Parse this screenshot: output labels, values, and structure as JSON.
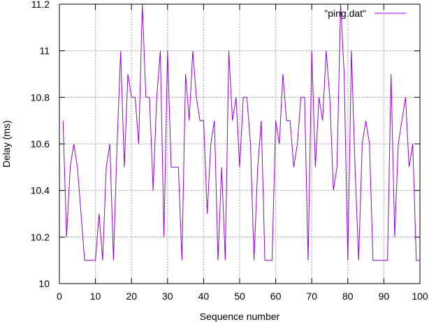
{
  "chart_data": {
    "type": "line",
    "xlabel": "Sequence number",
    "ylabel": "Delay (ms)",
    "xlim": [
      0,
      100
    ],
    "ylim": [
      10,
      11.2
    ],
    "xticks": [
      "0",
      "10",
      "20",
      "30",
      "40",
      "50",
      "60",
      "70",
      "80",
      "90",
      "100"
    ],
    "yticks": [
      "10",
      "10.2",
      "10.4",
      "10.6",
      "10.8",
      "11",
      "11.2"
    ],
    "grid": true,
    "legend_position": "top-right",
    "series": [
      {
        "name": "\"ping.dat\"",
        "color": "#9400d3",
        "x": [
          1,
          2,
          3,
          4,
          5,
          6,
          7,
          8,
          9,
          10,
          11,
          12,
          13,
          14,
          15,
          16,
          17,
          18,
          19,
          20,
          21,
          22,
          23,
          24,
          25,
          26,
          27,
          28,
          29,
          30,
          31,
          32,
          33,
          34,
          35,
          36,
          37,
          38,
          39,
          40,
          41,
          42,
          43,
          44,
          45,
          46,
          47,
          48,
          49,
          50,
          51,
          52,
          53,
          54,
          55,
          56,
          57,
          58,
          59,
          60,
          61,
          62,
          63,
          64,
          65,
          66,
          67,
          68,
          69,
          70,
          71,
          72,
          73,
          74,
          75,
          76,
          77,
          78,
          79,
          80,
          81,
          82,
          83,
          84,
          85,
          86,
          87,
          88,
          89,
          90,
          91,
          92,
          93,
          94,
          95,
          96,
          97,
          98,
          99,
          100
        ],
        "y": [
          10.7,
          10.2,
          10.5,
          10.6,
          10.5,
          10.3,
          10.1,
          10.1,
          10.1,
          10.1,
          10.3,
          10.1,
          10.5,
          10.6,
          10.1,
          10.6,
          11.0,
          10.5,
          10.9,
          10.8,
          10.8,
          10.6,
          11.2,
          10.8,
          10.8,
          10.4,
          10.8,
          11.0,
          10.2,
          11.0,
          10.5,
          10.5,
          10.5,
          10.1,
          10.9,
          10.7,
          11.0,
          10.8,
          10.7,
          10.7,
          10.3,
          10.6,
          10.7,
          10.1,
          10.5,
          10.1,
          11.0,
          10.7,
          10.8,
          10.5,
          10.8,
          10.8,
          10.6,
          10.1,
          10.5,
          10.7,
          10.1,
          10.1,
          10.1,
          10.7,
          10.6,
          10.9,
          10.7,
          10.7,
          10.5,
          10.6,
          10.8,
          10.8,
          10.1,
          11.0,
          10.5,
          10.8,
          10.7,
          11.0,
          10.8,
          10.4,
          10.5,
          11.2,
          10.9,
          10.1,
          11.0,
          10.5,
          10.1,
          10.6,
          10.7,
          10.6,
          10.1,
          10.1,
          10.1,
          10.1,
          10.1,
          10.9,
          10.2,
          10.6,
          10.7,
          10.8,
          10.5,
          10.6,
          10.1,
          10.1
        ]
      }
    ]
  }
}
